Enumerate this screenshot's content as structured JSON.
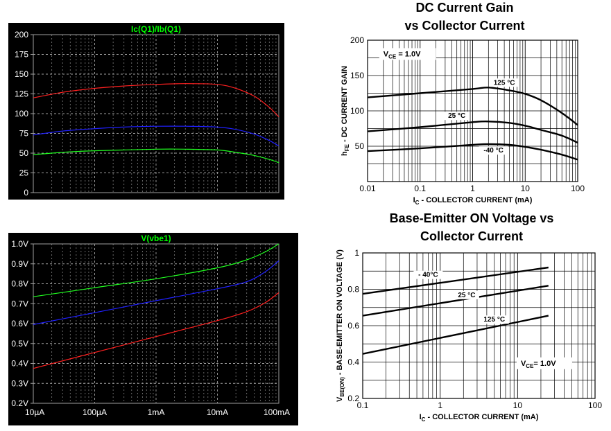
{
  "chart_data": [
    {
      "type": "line",
      "title": "Ic(Q1)/Ib(Q1)",
      "xscale": "log",
      "xlim": [
        1e-05,
        0.1
      ],
      "ylim": [
        0,
        200
      ],
      "yticks": [
        0,
        25,
        50,
        75,
        100,
        125,
        150,
        175,
        200
      ],
      "ytick_labels": [
        "0",
        "25",
        "50",
        "75",
        "100",
        "125",
        "150",
        "175",
        "200"
      ],
      "background": "#000000",
      "grid": true,
      "series": [
        {
          "color": "#ff2020",
          "x": [
            1e-05,
            3e-05,
            0.0001,
            0.0003,
            0.001,
            0.003,
            0.01,
            0.02,
            0.04,
            0.07,
            0.1
          ],
          "y": [
            120,
            127,
            132,
            135,
            137,
            138,
            137,
            132,
            122,
            108,
            96
          ]
        },
        {
          "color": "#2020ff",
          "x": [
            1e-05,
            3e-05,
            0.0001,
            0.0003,
            0.001,
            0.003,
            0.01,
            0.02,
            0.04,
            0.07,
            0.1
          ],
          "y": [
            73,
            78,
            81,
            83,
            84,
            84,
            83,
            80,
            74,
            66,
            59
          ]
        },
        {
          "color": "#20ff20",
          "x": [
            1e-05,
            3e-05,
            0.0001,
            0.0003,
            0.001,
            0.003,
            0.01,
            0.02,
            0.04,
            0.07,
            0.1
          ],
          "y": [
            48,
            51,
            53,
            54,
            55,
            55,
            54,
            51,
            47,
            42,
            38
          ]
        }
      ]
    },
    {
      "type": "line",
      "title": "V(vbe1)",
      "xscale": "log",
      "xlim": [
        1e-05,
        0.1
      ],
      "ylim": [
        0.2,
        1.0
      ],
      "yticks": [
        0.2,
        0.3,
        0.4,
        0.5,
        0.6,
        0.7,
        0.8,
        0.9,
        1.0
      ],
      "ytick_labels": [
        "0.2V",
        "0.3V",
        "0.4V",
        "0.5V",
        "0.6V",
        "0.7V",
        "0.8V",
        "0.9V",
        "1.0V"
      ],
      "xticks": [
        1e-05,
        0.0001,
        0.001,
        0.01,
        0.1
      ],
      "xtick_labels": [
        "10µA",
        "100µA",
        "1mA",
        "10mA",
        "100mA"
      ],
      "background": "#000000",
      "grid": true,
      "series": [
        {
          "color": "#20ff20",
          "x": [
            1e-05,
            0.0001,
            0.001,
            0.01,
            0.03,
            0.06,
            0.1
          ],
          "y": [
            0.735,
            0.78,
            0.825,
            0.88,
            0.92,
            0.96,
            1.0
          ]
        },
        {
          "color": "#2020ff",
          "x": [
            1e-05,
            0.0001,
            0.001,
            0.01,
            0.03,
            0.06,
            0.1
          ],
          "y": [
            0.595,
            0.655,
            0.715,
            0.775,
            0.81,
            0.86,
            0.915
          ]
        },
        {
          "color": "#ff2020",
          "x": [
            1e-05,
            0.0001,
            0.001,
            0.01,
            0.03,
            0.06,
            0.1
          ],
          "y": [
            0.375,
            0.455,
            0.535,
            0.615,
            0.66,
            0.705,
            0.755
          ]
        }
      ]
    },
    {
      "type": "line",
      "title": [
        "DC Current Gain",
        "vs Collector Current"
      ],
      "xscale": "log",
      "xlim": [
        0.01,
        100
      ],
      "ylim": [
        0,
        200
      ],
      "xticks": [
        0.01,
        0.1,
        1,
        10,
        100
      ],
      "xtick_labels": [
        "0.01",
        "0.1",
        "1",
        "10",
        "100"
      ],
      "yticks": [
        50,
        100,
        150,
        200
      ],
      "ytick_labels": [
        "50",
        "100",
        "150",
        "200"
      ],
      "xlabel": {
        "main": "I",
        "sub": "C",
        "rest": " - COLLECTOR CURRENT  (mA)"
      },
      "ylabel": {
        "main": "h",
        "sub": "FE",
        "rest": " - DC CURRENT GAIN"
      },
      "condition": {
        "main": "V",
        "sub": "CE",
        "rest": " = 1.0V"
      },
      "grid": true,
      "series": [
        {
          "name": "125 °C",
          "x": [
            0.01,
            0.1,
            1,
            2,
            5,
            10,
            20,
            50,
            100
          ],
          "y": [
            119,
            125,
            131,
            133,
            129,
            124,
            115,
            97,
            80
          ]
        },
        {
          "name": "25 °C",
          "x": [
            0.01,
            0.1,
            1,
            2,
            5,
            10,
            20,
            50,
            100
          ],
          "y": [
            71,
            77,
            84,
            85,
            83,
            79,
            73,
            65,
            55
          ]
        },
        {
          "name": "-40 °C",
          "x": [
            0.01,
            0.1,
            1,
            2,
            5,
            10,
            20,
            50,
            100
          ],
          "y": [
            43,
            47,
            52,
            53,
            52,
            49,
            45,
            38,
            31
          ]
        }
      ]
    },
    {
      "type": "line",
      "title": [
        "Base-Emitter ON Voltage vs",
        "Collector Current"
      ],
      "xscale": "log",
      "xlim": [
        0.1,
        100
      ],
      "ylim": [
        0.2,
        1
      ],
      "xticks": [
        0.1,
        1,
        10,
        100
      ],
      "xtick_labels": [
        "0.1",
        "1",
        "10",
        "100"
      ],
      "yticks": [
        0.2,
        0.4,
        0.6,
        0.8,
        1
      ],
      "ytick_labels": [
        "0.2",
        "0.4",
        "0.6",
        "0.8",
        "1"
      ],
      "xlabel": {
        "main": "I",
        "sub": "C",
        "rest": " - COLLECTOR CURRENT  (mA)"
      },
      "ylabel": {
        "main": "V",
        "sub": "BE(ON)",
        "rest": " - BASE-EMITTER ON VOLTAGE (V)"
      },
      "condition": {
        "main": "V",
        "sub": "CE",
        "rest": "= 1.0V"
      },
      "grid": true,
      "series": [
        {
          "name": "- 40°C",
          "x": [
            0.1,
            25
          ],
          "y": [
            0.775,
            0.92
          ]
        },
        {
          "name": "25 °C",
          "x": [
            0.1,
            25
          ],
          "y": [
            0.655,
            0.82
          ]
        },
        {
          "name": "125 °C",
          "x": [
            0.1,
            25
          ],
          "y": [
            0.445,
            0.655
          ]
        }
      ]
    }
  ]
}
